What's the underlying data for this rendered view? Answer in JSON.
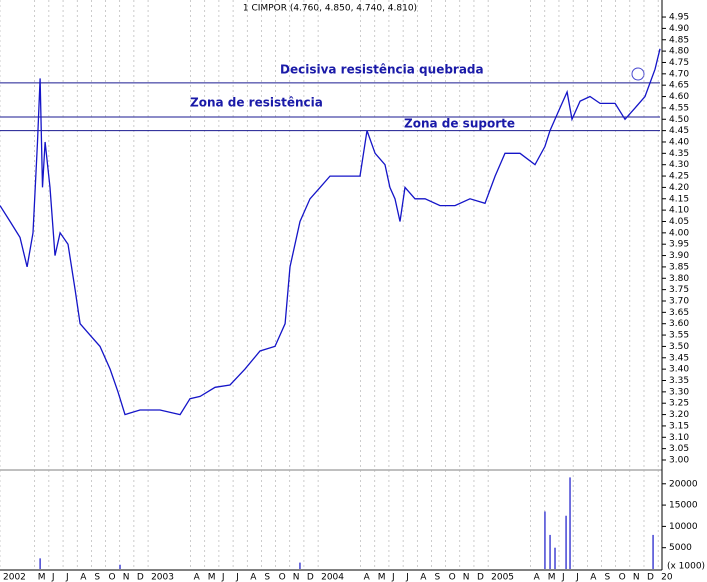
{
  "chart_data": {
    "type": "line",
    "title": "1 CIMPOR (4.760, 4.850, 4.740, 4.810)",
    "color": "#1515c8",
    "x": [
      1.55,
      2.26,
      2.96,
      3.46,
      3.88,
      4.2,
      4.38,
      4.55,
      4.73,
      5.08,
      5.43,
      5.79,
      6.35,
      6.85,
      7.2,
      7.9,
      8.61,
      9.32,
      9.88,
      10.37,
      11.43,
      12.84,
      14.26,
      14.96,
      15.67,
      16.73,
      17.78,
      18.84,
      19.9,
      20.96,
      21.67,
      22.02,
      22.72,
      23.43,
      24.14,
      24.84,
      25.9,
      26.96,
      27.45,
      28.02,
      28.72,
      29.07,
      29.43,
      29.78,
      30.13,
      30.84,
      31.55,
      32.6,
      33.66,
      34.72,
      35.78,
      36.49,
      37.19,
      38.25,
      39.31,
      40.01,
      40.37,
      41.07,
      41.57,
      41.92,
      42.49,
      43.19,
      43.9,
      44.96,
      45.66,
      46.37,
      47.07,
      47.78,
      48.13
    ],
    "values": [
      4.12,
      4.05,
      3.98,
      3.85,
      4.0,
      4.4,
      4.68,
      4.2,
      4.4,
      4.2,
      3.9,
      4.0,
      3.95,
      3.75,
      3.6,
      3.55,
      3.5,
      3.4,
      3.3,
      3.2,
      3.22,
      3.22,
      3.2,
      3.27,
      3.28,
      3.32,
      3.33,
      3.4,
      3.48,
      3.5,
      3.6,
      3.85,
      4.05,
      4.15,
      4.2,
      4.25,
      4.25,
      4.25,
      4.45,
      4.35,
      4.3,
      4.2,
      4.15,
      4.05,
      4.2,
      4.15,
      4.15,
      4.12,
      4.12,
      4.15,
      4.13,
      4.25,
      4.35,
      4.35,
      4.3,
      4.38,
      4.45,
      4.55,
      4.62,
      4.5,
      4.58,
      4.6,
      4.57,
      4.57,
      4.5,
      4.55,
      4.6,
      4.72,
      4.81
    ],
    "xlim": [
      1.55,
      48.13
    ],
    "xticks": [
      {
        "value": 1.55,
        "label": "2002"
      },
      {
        "value": 4,
        "label": "M"
      },
      {
        "value": 5,
        "label": "J"
      },
      {
        "value": 6,
        "label": "J"
      },
      {
        "value": 7,
        "label": "A"
      },
      {
        "value": 8,
        "label": "S"
      },
      {
        "value": 9,
        "label": "O"
      },
      {
        "value": 10,
        "label": "N"
      },
      {
        "value": 11,
        "label": "D"
      },
      {
        "value": 12,
        "label": "2003"
      },
      {
        "value": 15,
        "label": "A"
      },
      {
        "value": 16,
        "label": "M"
      },
      {
        "value": 17,
        "label": "J"
      },
      {
        "value": 18,
        "label": "J"
      },
      {
        "value": 19,
        "label": "A"
      },
      {
        "value": 20,
        "label": "S"
      },
      {
        "value": 21,
        "label": "O"
      },
      {
        "value": 22,
        "label": "N"
      },
      {
        "value": 23,
        "label": "D"
      },
      {
        "value": 24,
        "label": "2004"
      },
      {
        "value": 27,
        "label": "A"
      },
      {
        "value": 28,
        "label": "M"
      },
      {
        "value": 29,
        "label": "J"
      },
      {
        "value": 30,
        "label": "J"
      },
      {
        "value": 31,
        "label": "A"
      },
      {
        "value": 32,
        "label": "S"
      },
      {
        "value": 33,
        "label": "O"
      },
      {
        "value": 34,
        "label": "N"
      },
      {
        "value": 35,
        "label": "D"
      },
      {
        "value": 36,
        "label": "2005"
      },
      {
        "value": 39,
        "label": "A"
      },
      {
        "value": 40,
        "label": "M"
      },
      {
        "value": 41,
        "label": "J"
      },
      {
        "value": 42,
        "label": "J"
      },
      {
        "value": 43,
        "label": "A"
      },
      {
        "value": 44,
        "label": "S"
      },
      {
        "value": 45,
        "label": "O"
      },
      {
        "value": 46,
        "label": "N"
      },
      {
        "value": 47,
        "label": "D"
      },
      {
        "value": 48,
        "label": "20"
      }
    ],
    "ylim": [
      2.956,
      5.025
    ],
    "yticks": [
      {
        "value": 3,
        "label": "3.00"
      },
      3.05,
      {
        "value": 3.1,
        "label": "3.10"
      },
      3.15,
      {
        "value": 3.2,
        "label": "3.20"
      },
      3.25,
      {
        "value": 3.3,
        "label": "3.30"
      },
      3.35,
      {
        "value": 3.4,
        "label": "3.40"
      },
      3.45,
      {
        "value": 3.5,
        "label": "3.50"
      },
      3.55,
      {
        "value": 3.6,
        "label": "3.60"
      },
      3.65,
      {
        "value": 3.7,
        "label": "3.70"
      },
      3.75,
      {
        "value": 3.8,
        "label": "3.80"
      },
      3.85,
      {
        "value": 3.9,
        "label": "3.90"
      },
      3.95,
      {
        "value": 4,
        "label": "4.00"
      },
      4.05,
      {
        "value": 4.1,
        "label": "4.10"
      },
      4.15,
      {
        "value": 4.2,
        "label": "4.20"
      },
      4.25,
      {
        "value": 4.3,
        "label": "4.30"
      },
      4.35,
      {
        "value": 4.4,
        "label": "4.40"
      },
      4.45,
      {
        "value": 4.5,
        "label": "4.50"
      },
      4.55,
      {
        "value": 4.6,
        "label": "4.60"
      },
      4.65,
      {
        "value": 4.7,
        "label": "4.70"
      },
      4.75,
      {
        "value": 4.8,
        "label": "4.80"
      },
      4.85,
      {
        "value": 4.9,
        "label": "4.90"
      },
      4.95
    ],
    "hlines": [
      4.66,
      4.51,
      4.45
    ],
    "annotations": [
      "Decisiva resistência quebrada",
      "Zona de resistência",
      "Zona de suporte"
    ],
    "volume": {
      "type": "bar",
      "label": "(x 1000)",
      "x": [
        4.38,
        10.02,
        22.72,
        40.01,
        40.37,
        40.72,
        41.5,
        41.78,
        47.64
      ],
      "values": [
        2500,
        1000,
        1500,
        13500,
        8000,
        5000,
        12500,
        21500,
        8000
      ],
      "ylim": [
        0,
        23000
      ],
      "yticks": [
        5000,
        10000,
        15000,
        20000
      ]
    },
    "grid": true
  }
}
